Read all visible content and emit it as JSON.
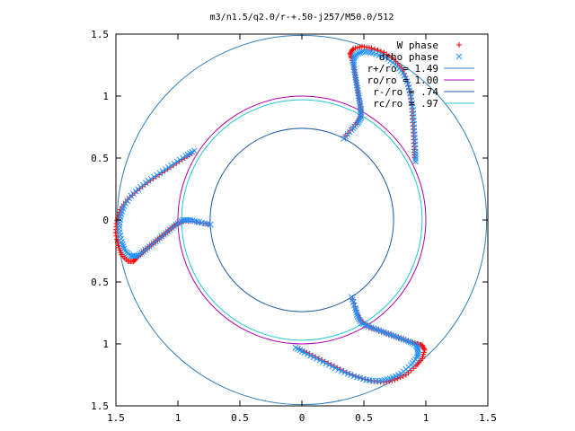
{
  "chart_data": {
    "type": "scatter",
    "title": "m3/n1.5/q2.0/r-+.50-j257/M50.0/512",
    "xlabel": "",
    "ylabel": "",
    "xlim": [
      -1.5,
      1.5
    ],
    "ylim": [
      -1.5,
      1.5
    ],
    "x_ticks": [
      -1.5,
      -1,
      -0.5,
      0,
      0.5,
      1,
      1.5
    ],
    "y_ticks": [
      -1.5,
      -1,
      -0.5,
      0,
      0.5,
      1,
      1.5
    ],
    "x_tick_labels": [
      "1.5",
      "1",
      "0.5",
      "0",
      "0.5",
      "1",
      "1.5"
    ],
    "y_tick_labels": [
      "1.5",
      "1",
      "0.5",
      "0",
      "0.5",
      "1",
      "1.5"
    ],
    "grid": false,
    "legend_position": "top-right",
    "symmetry_arms": 3,
    "scatter_series": [
      {
        "name": "W phase",
        "marker": "+",
        "color": "#ff0000",
        "arm_points": [
          [
            0.41,
            -0.64
          ],
          [
            0.45,
            -0.76
          ],
          [
            0.48,
            -0.82
          ],
          [
            0.52,
            -0.85
          ],
          [
            0.56,
            -0.87
          ],
          [
            0.62,
            -0.89
          ],
          [
            0.7,
            -0.92
          ],
          [
            0.78,
            -0.95
          ],
          [
            0.86,
            -0.98
          ],
          [
            0.93,
            -1.0
          ],
          [
            0.97,
            -1.01
          ],
          [
            0.99,
            -1.05
          ],
          [
            0.97,
            -1.12
          ],
          [
            0.92,
            -1.18
          ],
          [
            0.84,
            -1.25
          ],
          [
            0.75,
            -1.29
          ],
          [
            0.66,
            -1.31
          ],
          [
            0.56,
            -1.3
          ],
          [
            0.46,
            -1.27
          ],
          [
            0.36,
            -1.23
          ],
          [
            0.26,
            -1.18
          ],
          [
            0.16,
            -1.13
          ],
          [
            0.06,
            -1.08
          ],
          [
            -0.02,
            -1.04
          ]
        ]
      },
      {
        "name": "drho phase",
        "marker": "x",
        "color": "#1e90ff",
        "arm_points": [
          [
            0.4,
            -0.62
          ],
          [
            0.43,
            -0.71
          ],
          [
            0.45,
            -0.78
          ],
          [
            0.48,
            -0.83
          ],
          [
            0.54,
            -0.86
          ],
          [
            0.62,
            -0.89
          ],
          [
            0.7,
            -0.92
          ],
          [
            0.78,
            -0.95
          ],
          [
            0.86,
            -0.98
          ],
          [
            0.92,
            -1.01
          ],
          [
            0.94,
            -1.05
          ],
          [
            0.93,
            -1.11
          ],
          [
            0.88,
            -1.17
          ],
          [
            0.8,
            -1.24
          ],
          [
            0.71,
            -1.28
          ],
          [
            0.62,
            -1.3
          ],
          [
            0.52,
            -1.29
          ],
          [
            0.42,
            -1.26
          ],
          [
            0.32,
            -1.22
          ],
          [
            0.22,
            -1.17
          ],
          [
            0.12,
            -1.12
          ],
          [
            0.02,
            -1.07
          ],
          [
            -0.05,
            -1.03
          ]
        ]
      }
    ],
    "circles": [
      {
        "name": "r+/ro = 1.49",
        "radius": 1.49,
        "color": "#2f7fbf"
      },
      {
        "name": "ro/ro = 1.00",
        "radius": 1.0,
        "color": "#b000b0"
      },
      {
        "name": "r-/ro = .74",
        "radius": 0.74,
        "color": "#1f5fa8"
      },
      {
        "name": "rc/ro = .97",
        "radius": 0.97,
        "color": "#20c8d0"
      }
    ]
  }
}
